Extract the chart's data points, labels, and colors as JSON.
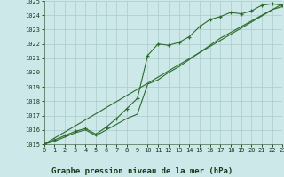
{
  "title": "Graphe pression niveau de la mer (hPa)",
  "bg_color": "#cce8e8",
  "grid_color": "#aacccc",
  "line_color": "#2d6b2d",
  "x_min": 0,
  "x_max": 23,
  "y_min": 1015,
  "y_max": 1025,
  "x_ticks": [
    0,
    1,
    2,
    3,
    4,
    5,
    6,
    7,
    8,
    9,
    10,
    11,
    12,
    13,
    14,
    15,
    16,
    17,
    18,
    19,
    20,
    21,
    22,
    23
  ],
  "y_ticks": [
    1015,
    1016,
    1017,
    1018,
    1019,
    1020,
    1021,
    1022,
    1023,
    1024,
    1025
  ],
  "series1_x": [
    0,
    1,
    2,
    3,
    4,
    5,
    6,
    7,
    8,
    9,
    10,
    11,
    12,
    13,
    14,
    15,
    16,
    17,
    18,
    19,
    20,
    21,
    22,
    23
  ],
  "series1_y": [
    1015.0,
    1015.3,
    1015.6,
    1015.9,
    1016.1,
    1015.7,
    1016.2,
    1016.8,
    1017.5,
    1018.2,
    1021.2,
    1022.0,
    1021.9,
    1022.1,
    1022.5,
    1023.2,
    1023.7,
    1023.9,
    1024.2,
    1024.1,
    1024.3,
    1024.7,
    1024.8,
    1024.7
  ],
  "series2_x": [
    0,
    1,
    2,
    3,
    4,
    5,
    6,
    7,
    8,
    9,
    10,
    11,
    12,
    13,
    14,
    15,
    16,
    17,
    18,
    19,
    20,
    21,
    22,
    23
  ],
  "series2_y": [
    1015.0,
    1015.2,
    1015.5,
    1015.8,
    1016.0,
    1015.6,
    1016.0,
    1016.4,
    1016.8,
    1017.1,
    1019.2,
    1019.5,
    1020.0,
    1020.4,
    1020.9,
    1021.4,
    1021.9,
    1022.4,
    1022.8,
    1023.2,
    1023.6,
    1024.0,
    1024.4,
    1024.6
  ],
  "trend_x": [
    0,
    23
  ],
  "trend_y": [
    1015.0,
    1024.8
  ],
  "title_fontsize": 6.5,
  "tick_fontsize": 5.0
}
